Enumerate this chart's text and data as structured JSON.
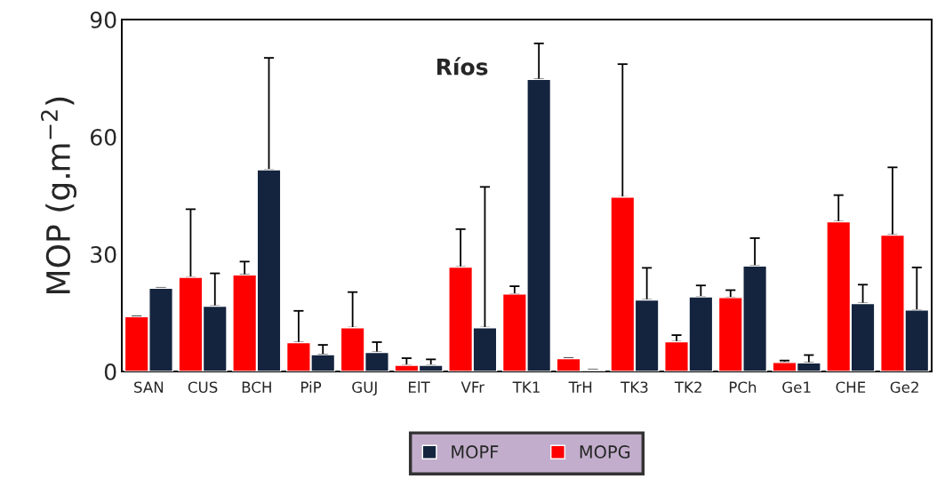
{
  "chart_data": {
    "type": "bar",
    "ylabel": "MOP (g.m$^{−2}$)",
    "annotations": [
      "Ríos"
    ],
    "categories": [
      "SAN",
      "CUS",
      "BCH",
      "PiP",
      "GUJ",
      "ElT",
      "VFr",
      "TK1",
      "TrH",
      "TK3",
      "TK2",
      "PCh",
      "Ge1",
      "CHE",
      "Ge2"
    ],
    "series": [
      {
        "name": "MOPF",
        "color": "#14243e",
        "values": [
          21.3,
          16.7,
          51.6,
          4.3,
          4.9,
          1.6,
          11.2,
          74.7,
          0.4,
          18.3,
          19.1,
          27.0,
          2.2,
          17.4,
          15.7
        ],
        "errors": [
          [
            21.3,
            21.4
          ],
          [
            16.7,
            25.1
          ],
          [
            51.6,
            80.2
          ],
          [
            4.3,
            6.8
          ],
          [
            4.9,
            7.5
          ],
          [
            1.6,
            3.1
          ],
          [
            11.2,
            47.2
          ],
          [
            74.7,
            83.9
          ],
          [
            0.4,
            0.5
          ],
          [
            18.3,
            26.5
          ],
          [
            19.1,
            22.0
          ],
          [
            27.0,
            34.1
          ],
          [
            2.2,
            4.2
          ],
          [
            17.4,
            22.2
          ],
          [
            15.7,
            26.6
          ]
        ]
      },
      {
        "name": "MOPG",
        "color": "#ff0000",
        "values": [
          14.0,
          24.1,
          24.7,
          7.4,
          11.2,
          1.6,
          26.7,
          19.8,
          3.3,
          44.6,
          7.6,
          18.9,
          2.3,
          38.3,
          34.9
        ],
        "errors": [
          [
            14.0,
            14.1
          ],
          [
            24.1,
            41.5
          ],
          [
            24.7,
            28.1
          ],
          [
            7.4,
            15.5
          ],
          [
            11.2,
            20.3
          ],
          [
            1.6,
            3.4
          ],
          [
            26.7,
            36.4
          ],
          [
            19.8,
            21.8
          ],
          [
            3.3,
            3.4
          ],
          [
            44.6,
            78.6
          ],
          [
            7.6,
            9.3
          ],
          [
            18.9,
            20.8
          ],
          [
            2.3,
            2.8
          ],
          [
            38.3,
            45.1
          ],
          [
            34.9,
            52.2
          ]
        ]
      }
    ],
    "ylim": [
      0,
      90
    ],
    "yticks": [
      0,
      30,
      60,
      90
    ],
    "grid": false,
    "legend": "bottom"
  }
}
